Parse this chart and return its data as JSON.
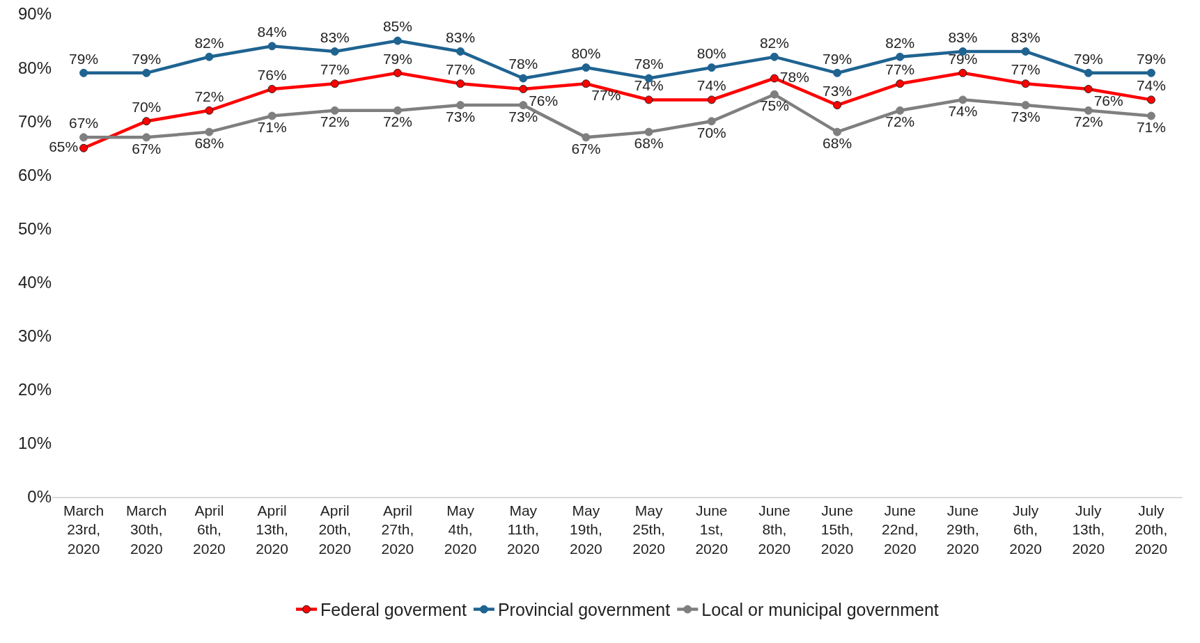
{
  "chart_data": {
    "type": "line",
    "categories": [
      "March 23rd, 2020",
      "March 30th, 2020",
      "April 6th, 2020",
      "April 13th, 2020",
      "April 20th, 2020",
      "April 27th, 2020",
      "May 4th, 2020",
      "May 11th, 2020",
      "May 19th, 2020",
      "May 25th, 2020",
      "June 1st, 2020",
      "June 8th, 2020",
      "June 15th, 2020",
      "June 22nd, 2020",
      "June 29th, 2020",
      "July 6th, 2020",
      "July 13th, 2020",
      "July 20th, 2020"
    ],
    "series": [
      {
        "name": "Federal goverment",
        "color": "#ff0000",
        "values": [
          65,
          70,
          72,
          76,
          77,
          79,
          77,
          76,
          77,
          74,
          74,
          78,
          73,
          77,
          79,
          77,
          76,
          74
        ],
        "value_labels": [
          "65%",
          "70%",
          "72%",
          "76%",
          "77%",
          "79%",
          "77%",
          "76%",
          "77%",
          "74%",
          "74%",
          "78%",
          "73%",
          "77%",
          "79%",
          "77%",
          "76%",
          "74%"
        ]
      },
      {
        "name": "Provincial government",
        "color": "#1f6391",
        "values": [
          79,
          79,
          82,
          84,
          83,
          85,
          83,
          78,
          80,
          78,
          80,
          82,
          79,
          82,
          83,
          83,
          79,
          79
        ],
        "value_labels": [
          "79%",
          "79%",
          "82%",
          "84%",
          "83%",
          "85%",
          "83%",
          "78%",
          "80%",
          "78%",
          "80%",
          "82%",
          "79%",
          "82%",
          "83%",
          "83%",
          "79%",
          "79%"
        ]
      },
      {
        "name": "Local or municipal government",
        "color": "#7f7f7f",
        "values": [
          67,
          67,
          68,
          71,
          72,
          72,
          73,
          73,
          67,
          68,
          70,
          75,
          68,
          72,
          74,
          73,
          72,
          71
        ],
        "value_labels": [
          "67%",
          "67%",
          "68%",
          "71%",
          "72%",
          "72%",
          "73%",
          "73%",
          "67%",
          "68%",
          "70%",
          "75%",
          "68%",
          "72%",
          "74%",
          "73%",
          "72%",
          "71%"
        ]
      }
    ],
    "ylim": [
      0,
      90
    ],
    "yticks": [
      {
        "value": 0,
        "label": "0%"
      },
      {
        "value": 10,
        "label": "10%"
      },
      {
        "value": 20,
        "label": "20%"
      },
      {
        "value": 30,
        "label": "30%"
      },
      {
        "value": 40,
        "label": "40%"
      },
      {
        "value": 50,
        "label": "50%"
      },
      {
        "value": 60,
        "label": "60%"
      },
      {
        "value": 70,
        "label": "70%"
      },
      {
        "value": 80,
        "label": "80%"
      },
      {
        "value": 90,
        "label": "90%"
      }
    ],
    "grid": false,
    "legend": "bottom",
    "marker": "circle",
    "line_style": "solid"
  }
}
